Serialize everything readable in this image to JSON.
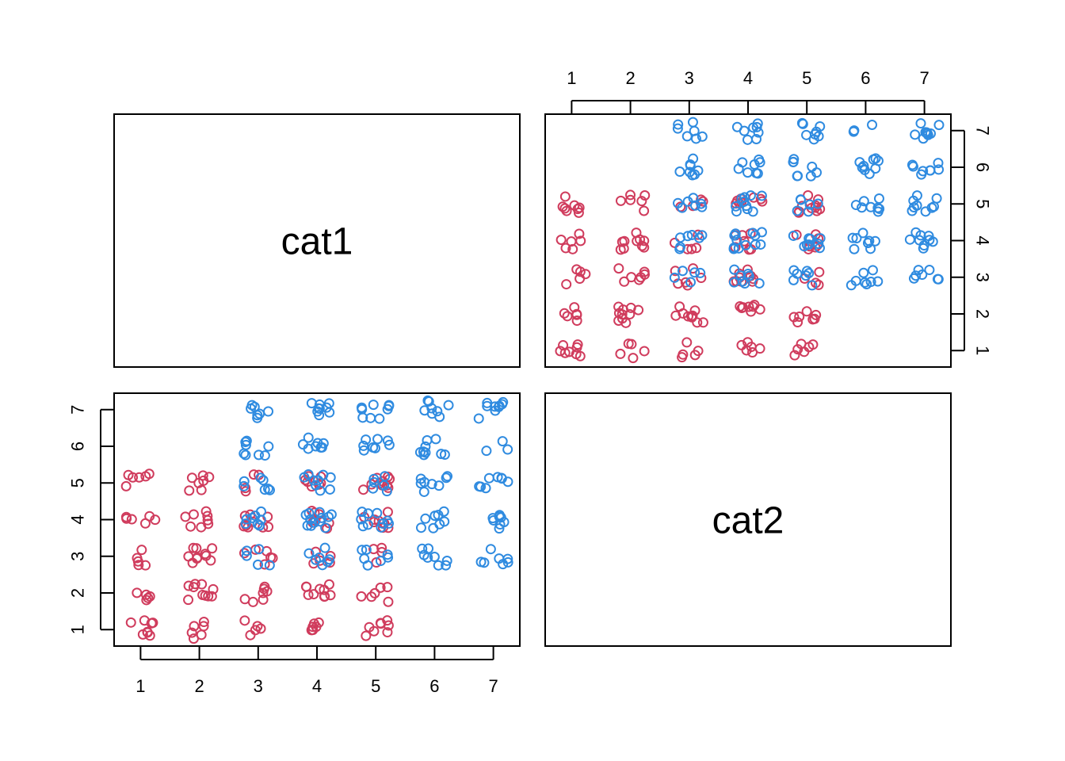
{
  "chart_data": {
    "type": "scatter",
    "title": "",
    "variables": [
      "cat1",
      "cat2"
    ],
    "diagonal_labels": [
      "cat1",
      "cat2"
    ],
    "xlim": [
      0.55,
      7.45
    ],
    "ylim": [
      0.55,
      7.45
    ],
    "ticks": [
      1,
      2,
      3,
      4,
      5,
      6,
      7
    ],
    "tick_labels": [
      "1",
      "2",
      "3",
      "4",
      "5",
      "6",
      "7"
    ],
    "jitter": true,
    "grid": false,
    "colors": {
      "red": "#d03c5d",
      "blue": "#2f8be0"
    },
    "group_counts_note": "Counts estimated per (cat1, cat2) cell; plotted with jitter.",
    "series": [
      {
        "color": "red",
        "cells": [
          {
            "cat1": 1,
            "cat2": 1,
            "n": 8
          },
          {
            "cat1": 1,
            "cat2": 2,
            "n": 5
          },
          {
            "cat1": 1,
            "cat2": 3,
            "n": 5
          },
          {
            "cat1": 1,
            "cat2": 4,
            "n": 6
          },
          {
            "cat1": 1,
            "cat2": 5,
            "n": 6
          },
          {
            "cat1": 2,
            "cat2": 1,
            "n": 6
          },
          {
            "cat1": 2,
            "cat2": 2,
            "n": 10
          },
          {
            "cat1": 2,
            "cat2": 3,
            "n": 10
          },
          {
            "cat1": 2,
            "cat2": 4,
            "n": 8
          },
          {
            "cat1": 2,
            "cat2": 5,
            "n": 7
          },
          {
            "cat1": 3,
            "cat2": 1,
            "n": 5
          },
          {
            "cat1": 3,
            "cat2": 2,
            "n": 7
          },
          {
            "cat1": 3,
            "cat2": 3,
            "n": 6
          },
          {
            "cat1": 3,
            "cat2": 4,
            "n": 9
          },
          {
            "cat1": 3,
            "cat2": 5,
            "n": 4
          },
          {
            "cat1": 4,
            "cat2": 1,
            "n": 6
          },
          {
            "cat1": 4,
            "cat2": 2,
            "n": 10
          },
          {
            "cat1": 4,
            "cat2": 3,
            "n": 5
          },
          {
            "cat1": 4,
            "cat2": 4,
            "n": 7
          },
          {
            "cat1": 4,
            "cat2": 5,
            "n": 7
          },
          {
            "cat1": 5,
            "cat2": 1,
            "n": 8
          },
          {
            "cat1": 5,
            "cat2": 2,
            "n": 6
          },
          {
            "cat1": 5,
            "cat2": 3,
            "n": 4
          },
          {
            "cat1": 5,
            "cat2": 4,
            "n": 8
          },
          {
            "cat1": 5,
            "cat2": 5,
            "n": 10
          }
        ]
      },
      {
        "color": "blue",
        "cells": [
          {
            "cat1": 3,
            "cat2": 3,
            "n": 5
          },
          {
            "cat1": 3,
            "cat2": 4,
            "n": 8
          },
          {
            "cat1": 3,
            "cat2": 5,
            "n": 7
          },
          {
            "cat1": 3,
            "cat2": 6,
            "n": 8
          },
          {
            "cat1": 3,
            "cat2": 7,
            "n": 7
          },
          {
            "cat1": 4,
            "cat2": 3,
            "n": 7
          },
          {
            "cat1": 4,
            "cat2": 4,
            "n": 12
          },
          {
            "cat1": 4,
            "cat2": 5,
            "n": 9
          },
          {
            "cat1": 4,
            "cat2": 6,
            "n": 8
          },
          {
            "cat1": 4,
            "cat2": 7,
            "n": 9
          },
          {
            "cat1": 5,
            "cat2": 3,
            "n": 7
          },
          {
            "cat1": 5,
            "cat2": 4,
            "n": 10
          },
          {
            "cat1": 5,
            "cat2": 5,
            "n": 6
          },
          {
            "cat1": 5,
            "cat2": 6,
            "n": 8
          },
          {
            "cat1": 5,
            "cat2": 7,
            "n": 9
          },
          {
            "cat1": 6,
            "cat2": 3,
            "n": 8
          },
          {
            "cat1": 6,
            "cat2": 4,
            "n": 8
          },
          {
            "cat1": 6,
            "cat2": 5,
            "n": 8
          },
          {
            "cat1": 6,
            "cat2": 6,
            "n": 9
          },
          {
            "cat1": 6,
            "cat2": 7,
            "n": 8
          },
          {
            "cat1": 7,
            "cat2": 3,
            "n": 7
          },
          {
            "cat1": 7,
            "cat2": 4,
            "n": 8
          },
          {
            "cat1": 7,
            "cat2": 5,
            "n": 8
          },
          {
            "cat1": 7,
            "cat2": 6,
            "n": 3
          },
          {
            "cat1": 7,
            "cat2": 7,
            "n": 9
          }
        ]
      }
    ]
  }
}
